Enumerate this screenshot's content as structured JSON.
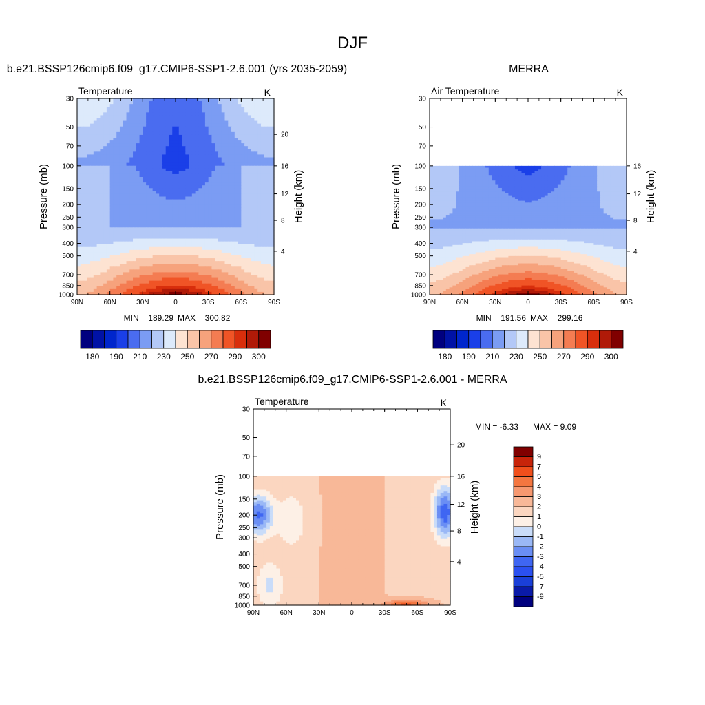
{
  "figure": {
    "title": "DJF"
  },
  "colors": {
    "abs_levels": [
      "#00007f",
      "#0012a6",
      "#0026cc",
      "#1a3fe8",
      "#4a6cf0",
      "#7b9cf3",
      "#b3c8f7",
      "#ddeafb",
      "#fde3d2",
      "#f9c4a8",
      "#f6a27c",
      "#f47c52",
      "#f05426",
      "#d82e0c",
      "#b01a08",
      "#800000"
    ],
    "diff_levels": [
      "#00007f",
      "#0a1aa8",
      "#1a3fd8",
      "#2b50f0",
      "#3f66f2",
      "#6a8ef4",
      "#9ab8f6",
      "#c9dcf9",
      "#fdf0e6",
      "#fbd6c0",
      "#f8b898",
      "#f69870",
      "#f47640",
      "#f04f1c",
      "#c8240a",
      "#800000"
    ]
  },
  "panels": [
    {
      "id": "model",
      "title": "b.e21.BSSP126cmip6.f09_g17.CMIP6-SSP1-2.6.001 (yrs 2035-2059)",
      "left_label": "Temperature",
      "right_label": "K",
      "ylabel": "Pressure (mb)",
      "ylabel_right": "Height (km)",
      "stats_min_label": "MIN = 189.29",
      "stats_max_label": "MAX = 300.82",
      "y_ticks": [
        "30",
        "50",
        "70",
        "100",
        "150",
        "200",
        "250",
        "300",
        "400",
        "500",
        "700",
        "850",
        "1000"
      ],
      "height_ticks": [
        "20",
        "16",
        "12",
        "8",
        "4"
      ],
      "x_ticks": [
        "90N",
        "60N",
        "30N",
        "0",
        "30S",
        "60S",
        "90S"
      ],
      "colorbar_labels": [
        "180",
        "190",
        "210",
        "230",
        "250",
        "270",
        "290",
        "300"
      ]
    },
    {
      "id": "obs",
      "title": "MERRA",
      "left_label": "Air Temperature",
      "right_label": "K",
      "ylabel": "Pressure (mb)",
      "ylabel_right": "Height (km)",
      "stats_min_label": "MIN = 191.56",
      "stats_max_label": "MAX = 299.16",
      "y_ticks": [
        "30",
        "50",
        "70",
        "100",
        "150",
        "200",
        "250",
        "300",
        "400",
        "500",
        "700",
        "850",
        "1000"
      ],
      "height_ticks": [
        "16",
        "12",
        "8",
        "4"
      ],
      "x_ticks": [
        "90N",
        "60N",
        "30N",
        "0",
        "30S",
        "60S",
        "90S"
      ],
      "colorbar_labels": [
        "180",
        "190",
        "210",
        "230",
        "250",
        "270",
        "290",
        "300"
      ]
    },
    {
      "id": "diff",
      "title": "b.e21.BSSP126cmip6.f09_g17.CMIP6-SSP1-2.6.001 - MERRA",
      "left_label": "Temperature",
      "right_label": "K",
      "ylabel": "Pressure (mb)",
      "ylabel_right": "Height (km)",
      "stats_min_label": "MIN =  -6.33",
      "stats_max_label": "MAX =   9.09",
      "y_ticks": [
        "30",
        "50",
        "70",
        "100",
        "150",
        "200",
        "250",
        "300",
        "400",
        "500",
        "700",
        "850",
        "1000"
      ],
      "height_ticks": [
        "20",
        "16",
        "12",
        "8",
        "4"
      ],
      "x_ticks": [
        "90N",
        "60N",
        "30N",
        "0",
        "30S",
        "60S",
        "90S"
      ],
      "colorbar_labels": [
        "9",
        "7",
        "5",
        "4",
        "3",
        "2",
        "1",
        "0",
        "-1",
        "-2",
        "-3",
        "-4",
        "-5",
        "-7",
        "-9"
      ]
    }
  ],
  "chart_data": [
    {
      "type": "heatmap",
      "title": "b.e21.BSSP126cmip6.f09_g17.CMIP6-SSP1-2.6.001 (yrs 2035-2059)",
      "variable": "Temperature",
      "units": "K",
      "xlabel": "",
      "ylabel": "Pressure (mb)",
      "ylabel_right": "Height (km)",
      "x": [
        -90,
        -60,
        -30,
        0,
        30,
        60,
        90
      ],
      "y": [
        30,
        50,
        70,
        100,
        150,
        200,
        250,
        300,
        400,
        500,
        700,
        850,
        1000
      ],
      "y_scale": "log",
      "ylim": [
        1000,
        30
      ],
      "contour_levels": [
        180,
        185,
        190,
        200,
        210,
        220,
        230,
        240,
        250,
        260,
        270,
        280,
        290,
        295,
        300
      ],
      "min": 189.29,
      "max": 300.82
    },
    {
      "type": "heatmap",
      "title": "MERRA",
      "variable": "Air Temperature",
      "units": "K",
      "xlabel": "",
      "ylabel": "Pressure (mb)",
      "ylabel_right": "Height (km)",
      "x": [
        -90,
        -60,
        -30,
        0,
        30,
        60,
        90
      ],
      "y": [
        100,
        150,
        200,
        250,
        300,
        400,
        500,
        700,
        850,
        1000
      ],
      "y_scale": "log",
      "ylim": [
        1000,
        30
      ],
      "contour_levels": [
        180,
        185,
        190,
        200,
        210,
        220,
        230,
        240,
        250,
        260,
        270,
        280,
        290,
        295,
        300
      ],
      "min": 191.56,
      "max": 299.16
    },
    {
      "type": "heatmap",
      "title": "b.e21.BSSP126cmip6.f09_g17.CMIP6-SSP1-2.6.001 - MERRA",
      "variable": "Temperature",
      "units": "K",
      "xlabel": "",
      "ylabel": "Pressure (mb)",
      "ylabel_right": "Height (km)",
      "x": [
        -90,
        -60,
        -30,
        0,
        30,
        60,
        90
      ],
      "y": [
        100,
        150,
        200,
        250,
        300,
        400,
        500,
        700,
        850,
        1000
      ],
      "y_scale": "log",
      "ylim": [
        1000,
        30
      ],
      "contour_levels": [
        -9,
        -7,
        -5,
        -4,
        -3,
        -2,
        -1,
        0,
        1,
        2,
        3,
        4,
        5,
        7,
        9
      ],
      "min": -6.33,
      "max": 9.09
    }
  ]
}
